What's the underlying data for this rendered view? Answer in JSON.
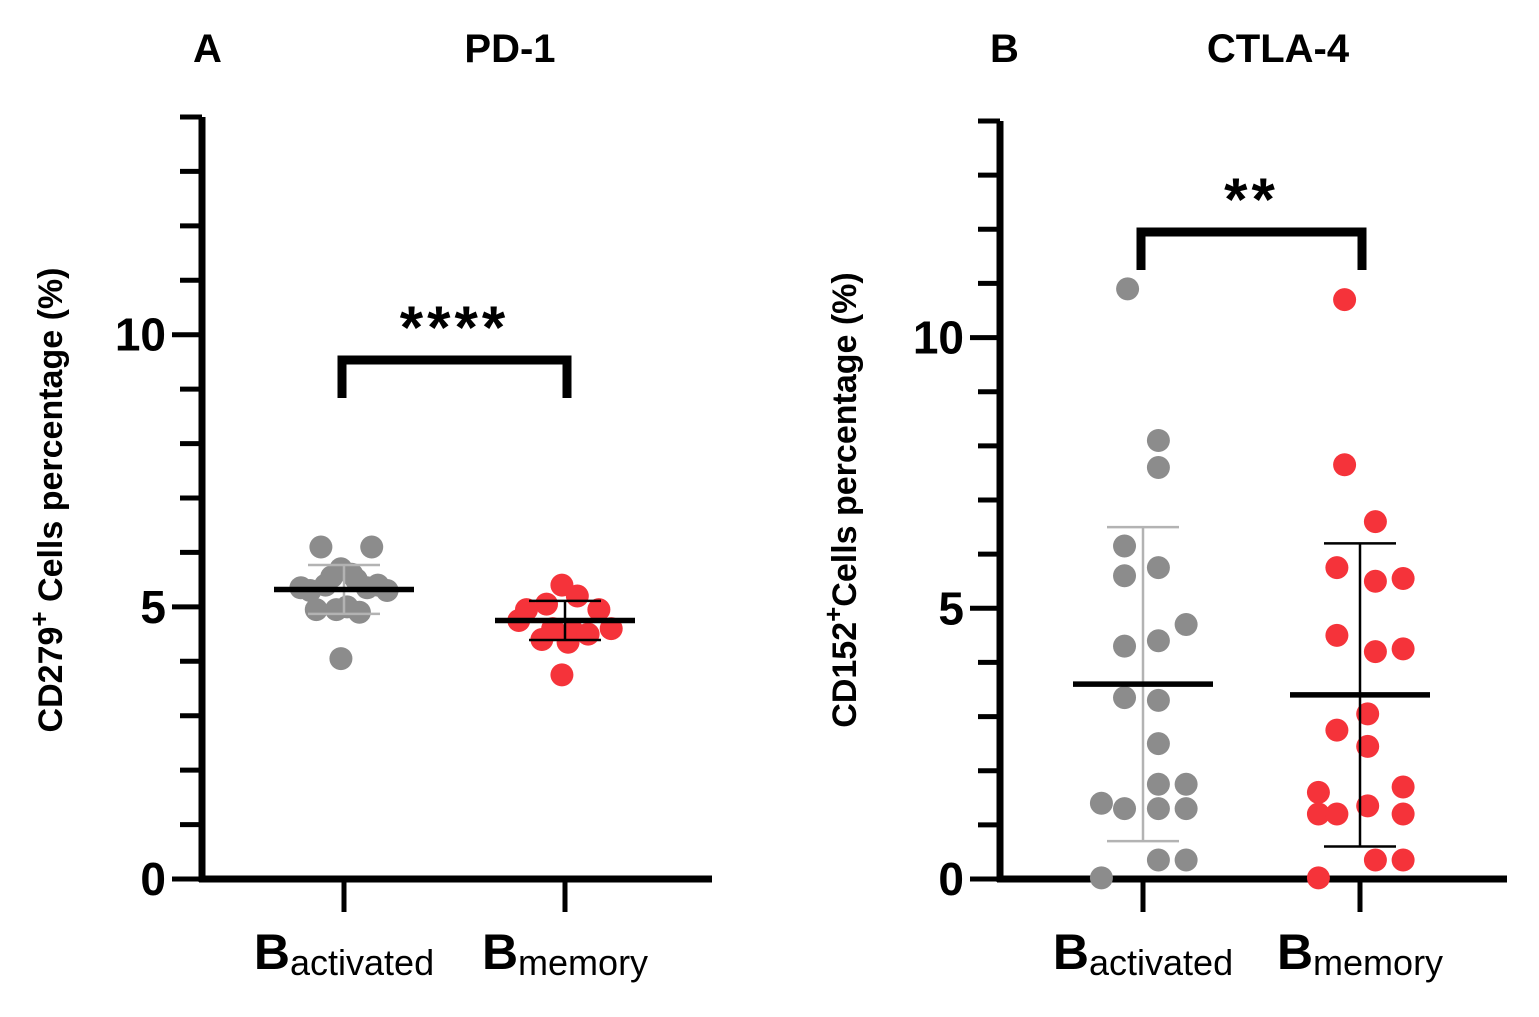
{
  "chart_data": [
    {
      "type": "scatter",
      "panel_label": "A",
      "title": "PD-1",
      "ylabel": "CD279",
      "ylabel_sup": "+",
      "ylabel_rest": " Cells percentage (%)",
      "ylim": [
        0,
        14
      ],
      "yticks": [
        0,
        5,
        10
      ],
      "categories": [
        {
          "main": "B",
          "sub": "activated"
        },
        {
          "main": "B",
          "sub": "memory"
        }
      ],
      "significance": "****",
      "series": [
        {
          "color": "#8c8c8c",
          "errorbar_color": "#b3b3b3",
          "mean": 5.32,
          "sd": 0.45,
          "points": [
            {
              "dx": -0.15,
              "y": 6.1
            },
            {
              "dx": 0.18,
              "y": 6.1
            },
            {
              "dx": -0.02,
              "y": 5.7
            },
            {
              "dx": 0.05,
              "y": 5.6
            },
            {
              "dx": 0.08,
              "y": 5.5
            },
            {
              "dx": -0.08,
              "y": 5.55
            },
            {
              "dx": -0.28,
              "y": 5.35
            },
            {
              "dx": -0.22,
              "y": 5.3
            },
            {
              "dx": -0.12,
              "y": 5.4
            },
            {
              "dx": 0.22,
              "y": 5.4
            },
            {
              "dx": 0.28,
              "y": 5.3
            },
            {
              "dx": 0.15,
              "y": 5.35
            },
            {
              "dx": -0.18,
              "y": 4.95
            },
            {
              "dx": -0.05,
              "y": 4.95
            },
            {
              "dx": 0.02,
              "y": 5.0
            },
            {
              "dx": 0.1,
              "y": 4.9
            },
            {
              "dx": -0.02,
              "y": 4.05
            }
          ]
        },
        {
          "color": "#f5333a",
          "errorbar_color": "#000000",
          "mean": 4.75,
          "sd": 0.36,
          "points": [
            {
              "dx": -0.02,
              "y": 5.4
            },
            {
              "dx": 0.08,
              "y": 5.2
            },
            {
              "dx": -0.12,
              "y": 5.05
            },
            {
              "dx": -0.25,
              "y": 4.95
            },
            {
              "dx": 0.22,
              "y": 4.95
            },
            {
              "dx": -0.3,
              "y": 4.75
            },
            {
              "dx": 0.3,
              "y": 4.6
            },
            {
              "dx": -0.08,
              "y": 4.6
            },
            {
              "dx": 0.05,
              "y": 4.55
            },
            {
              "dx": -0.15,
              "y": 4.4
            },
            {
              "dx": 0.02,
              "y": 4.35
            },
            {
              "dx": 0.15,
              "y": 4.5
            },
            {
              "dx": -0.02,
              "y": 3.75
            }
          ]
        }
      ]
    },
    {
      "type": "scatter",
      "panel_label": "B",
      "title": "CTLA-4",
      "ylabel": "CD152",
      "ylabel_sup": "+",
      "ylabel_rest": "Cells percentage (%)",
      "ylim": [
        0,
        14
      ],
      "yticks": [
        0,
        5,
        10
      ],
      "categories": [
        {
          "main": "B",
          "sub": "activated"
        },
        {
          "main": "B",
          "sub": "memory"
        }
      ],
      "significance": "**",
      "series": [
        {
          "color": "#8c8c8c",
          "errorbar_color": "#b3b3b3",
          "mean": 3.6,
          "sd": 2.9,
          "points": [
            {
              "dx": -0.1,
              "y": 10.9
            },
            {
              "dx": 0.1,
              "y": 8.1
            },
            {
              "dx": 0.1,
              "y": 7.6
            },
            {
              "dx": -0.12,
              "y": 6.15
            },
            {
              "dx": 0.1,
              "y": 5.75
            },
            {
              "dx": -0.12,
              "y": 5.6
            },
            {
              "dx": 0.28,
              "y": 4.7
            },
            {
              "dx": -0.12,
              "y": 4.3
            },
            {
              "dx": 0.1,
              "y": 4.4
            },
            {
              "dx": -0.12,
              "y": 3.35
            },
            {
              "dx": 0.1,
              "y": 3.3
            },
            {
              "dx": 0.1,
              "y": 2.5
            },
            {
              "dx": 0.1,
              "y": 1.75
            },
            {
              "dx": 0.28,
              "y": 1.75
            },
            {
              "dx": -0.27,
              "y": 1.4
            },
            {
              "dx": -0.12,
              "y": 1.3
            },
            {
              "dx": 0.1,
              "y": 1.3
            },
            {
              "dx": 0.28,
              "y": 1.3
            },
            {
              "dx": 0.1,
              "y": 0.35
            },
            {
              "dx": 0.28,
              "y": 0.35
            },
            {
              "dx": -0.27,
              "y": 0.02
            }
          ]
        },
        {
          "color": "#f5333a",
          "errorbar_color": "#000000",
          "mean": 3.4,
          "sd": 2.8,
          "points": [
            {
              "dx": -0.1,
              "y": 10.7
            },
            {
              "dx": -0.1,
              "y": 7.65
            },
            {
              "dx": 0.1,
              "y": 6.6
            },
            {
              "dx": -0.15,
              "y": 5.75
            },
            {
              "dx": 0.1,
              "y": 5.5
            },
            {
              "dx": 0.28,
              "y": 5.55
            },
            {
              "dx": -0.15,
              "y": 4.5
            },
            {
              "dx": 0.1,
              "y": 4.2
            },
            {
              "dx": 0.28,
              "y": 4.25
            },
            {
              "dx": 0.05,
              "y": 3.05
            },
            {
              "dx": -0.15,
              "y": 2.75
            },
            {
              "dx": 0.05,
              "y": 2.45
            },
            {
              "dx": -0.27,
              "y": 1.6
            },
            {
              "dx": 0.28,
              "y": 1.7
            },
            {
              "dx": -0.27,
              "y": 1.2
            },
            {
              "dx": -0.15,
              "y": 1.2
            },
            {
              "dx": 0.05,
              "y": 1.35
            },
            {
              "dx": 0.28,
              "y": 1.2
            },
            {
              "dx": 0.1,
              "y": 0.35
            },
            {
              "dx": 0.28,
              "y": 0.35
            },
            {
              "dx": -0.27,
              "y": 0.02
            }
          ]
        }
      ]
    }
  ]
}
